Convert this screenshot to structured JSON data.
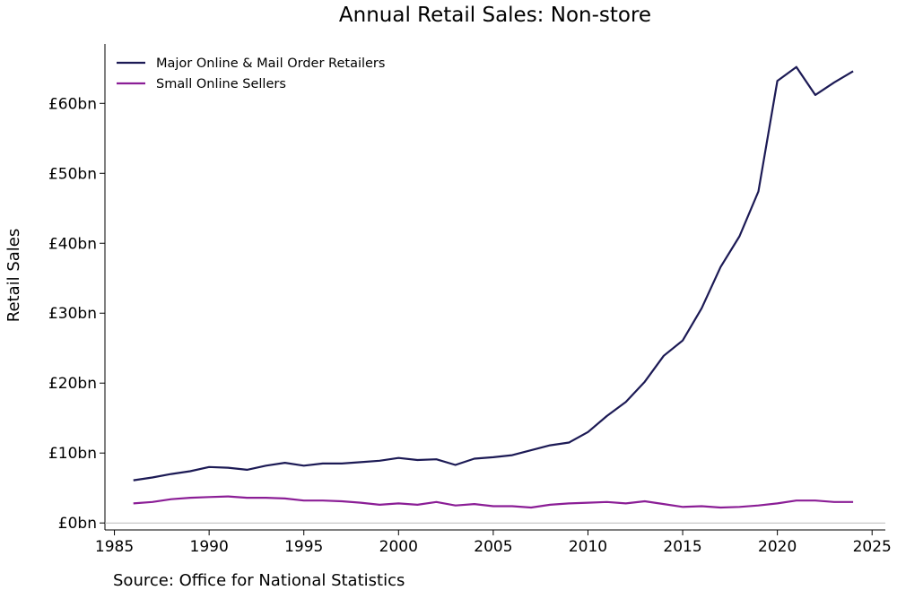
{
  "chart_data": {
    "type": "line",
    "title": "Annual Retail Sales: Non-store",
    "xlabel": "",
    "ylabel": "Retail Sales",
    "source": "Source: Office for National Statistics",
    "xlim": [
      1984.5,
      2025.7
    ],
    "ylim": [
      -1,
      68.5
    ],
    "x_ticks": [
      1985,
      1990,
      1995,
      2000,
      2005,
      2010,
      2015,
      2020,
      2025
    ],
    "y_ticks": [
      {
        "value": 0,
        "label": "£0bn"
      },
      {
        "value": 10,
        "label": "£10bn"
      },
      {
        "value": 20,
        "label": "£20bn"
      },
      {
        "value": 30,
        "label": "£30bn"
      },
      {
        "value": 40,
        "label": "£40bn"
      },
      {
        "value": 50,
        "label": "£50bn"
      },
      {
        "value": 60,
        "label": "£60bn"
      }
    ],
    "grid": false,
    "legend_position": "top-left",
    "x": [
      1986,
      1987,
      1988,
      1989,
      1990,
      1991,
      1992,
      1993,
      1994,
      1995,
      1996,
      1997,
      1998,
      1999,
      2000,
      2001,
      2002,
      2003,
      2004,
      2005,
      2006,
      2007,
      2008,
      2009,
      2010,
      2011,
      2012,
      2013,
      2014,
      2015,
      2016,
      2017,
      2018,
      2019,
      2020,
      2021,
      2022,
      2023,
      2024
    ],
    "series": [
      {
        "name": "Major Online & Mail Order Retailers",
        "color": "#1c1a55",
        "values": [
          6.1,
          6.5,
          7.0,
          7.4,
          8.0,
          7.9,
          7.6,
          8.2,
          8.6,
          8.2,
          8.5,
          8.5,
          8.7,
          8.9,
          9.3,
          9.0,
          9.1,
          8.3,
          9.2,
          9.4,
          9.7,
          10.4,
          11.1,
          11.5,
          13.0,
          15.3,
          17.3,
          20.2,
          23.9,
          26.1,
          30.7,
          36.6,
          41.0,
          47.4,
          63.2,
          65.2,
          61.2,
          63.0,
          64.6
        ]
      },
      {
        "name": "Small Online Sellers",
        "color": "#8b1e96",
        "values": [
          2.8,
          3.0,
          3.4,
          3.6,
          3.7,
          3.8,
          3.6,
          3.6,
          3.5,
          3.2,
          3.2,
          3.1,
          2.9,
          2.6,
          2.8,
          2.6,
          3.0,
          2.5,
          2.7,
          2.4,
          2.4,
          2.2,
          2.6,
          2.8,
          2.9,
          3.0,
          2.8,
          3.1,
          2.7,
          2.3,
          2.4,
          2.2,
          2.3,
          2.5,
          2.8,
          3.2,
          3.2,
          3.0,
          3.0
        ]
      }
    ]
  }
}
